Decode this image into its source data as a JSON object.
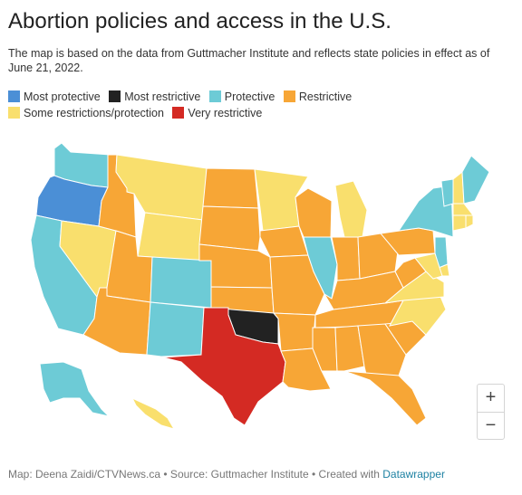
{
  "title": "Abortion policies and access in the U.S.",
  "subtitle": "The map is based on the data from Guttmacher Institute and reflects state policies in effect as of June 21, 2022.",
  "legend": [
    {
      "key": "most_protective",
      "label": "Most protective",
      "color": "#4b8fd6"
    },
    {
      "key": "most_restrictive",
      "label": "Most restrictive",
      "color": "#222222"
    },
    {
      "key": "protective",
      "label": "Protective",
      "color": "#6dcbd6"
    },
    {
      "key": "restrictive",
      "label": "Restrictive",
      "color": "#f7a636"
    },
    {
      "key": "some",
      "label": "Some restrictions/protection",
      "color": "#f9df6d"
    },
    {
      "key": "very_restrictive",
      "label": "Very restrictive",
      "color": "#d42a23"
    }
  ],
  "states": {
    "WA": "protective",
    "OR": "most_protective",
    "CA": "protective",
    "NV": "some",
    "ID": "restrictive",
    "MT": "some",
    "WY": "some",
    "UT": "restrictive",
    "AZ": "restrictive",
    "CO": "protective",
    "NM": "protective",
    "ND": "restrictive",
    "SD": "restrictive",
    "NE": "restrictive",
    "KS": "restrictive",
    "OK": "most_restrictive",
    "TX": "very_restrictive",
    "MN": "some",
    "IA": "restrictive",
    "MO": "restrictive",
    "AR": "restrictive",
    "LA": "restrictive",
    "WI": "restrictive",
    "IL": "protective",
    "MI": "some",
    "IN": "restrictive",
    "OH": "restrictive",
    "KY": "restrictive",
    "TN": "restrictive",
    "MS": "restrictive",
    "AL": "restrictive",
    "GA": "restrictive",
    "FL": "restrictive",
    "SC": "restrictive",
    "NC": "some",
    "VA": "some",
    "WV": "restrictive",
    "PA": "restrictive",
    "NY": "protective",
    "VT": "protective",
    "NH": "some",
    "ME": "protective",
    "MA": "some",
    "CT": "some",
    "RI": "some",
    "NJ": "protective",
    "DE": "some",
    "MD": "some",
    "AK": "protective",
    "HI": "some"
  },
  "zoom": {
    "in": "+",
    "out": "−"
  },
  "footer": {
    "credit": "Map: Deena Zaidi/CTVNews.ca • Source: Guttmacher Institute • Created with ",
    "link": "Datawrapper"
  }
}
